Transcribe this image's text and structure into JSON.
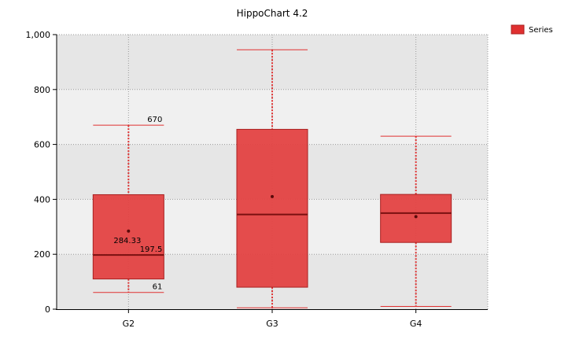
{
  "chart_data": {
    "type": "box",
    "title": "HippoChart 4.2",
    "xlabel": "",
    "ylabel": "",
    "ylim": [
      0,
      1000
    ],
    "yticks": [
      0,
      200,
      400,
      600,
      800,
      1000
    ],
    "ytick_labels": [
      "0",
      "200",
      "400",
      "600",
      "800",
      "1,000"
    ],
    "grid": true,
    "legend": {
      "position": "top-right",
      "entries": [
        "Series"
      ]
    },
    "categories": [
      "G2",
      "G3",
      "G4"
    ],
    "series": [
      {
        "name": "Series",
        "color": "#e03030",
        "boxes": [
          {
            "category": "G2",
            "min": 61,
            "q1": 110,
            "median": 197.5,
            "q3": 417,
            "max": 670,
            "mean": 284.33
          },
          {
            "category": "G3",
            "min": 5,
            "q1": 80,
            "median": 345,
            "q3": 655,
            "max": 945,
            "mean": 410
          },
          {
            "category": "G4",
            "min": 10,
            "q1": 243,
            "median": 350,
            "q3": 418,
            "max": 630,
            "mean": 337
          }
        ]
      }
    ],
    "annotations": [
      {
        "category": "G2",
        "text": "670"
      },
      {
        "category": "G2",
        "text": "284.33"
      },
      {
        "category": "G2",
        "text": "197.5"
      },
      {
        "category": "G2",
        "text": "61"
      }
    ],
    "colors": {
      "box_fill": "#e34242",
      "box_stroke": "#a82020",
      "median": "#7a1010",
      "whisker": "#e03030",
      "band_dark": "#e6e6e6",
      "band_light": "#f0f0f0"
    }
  }
}
